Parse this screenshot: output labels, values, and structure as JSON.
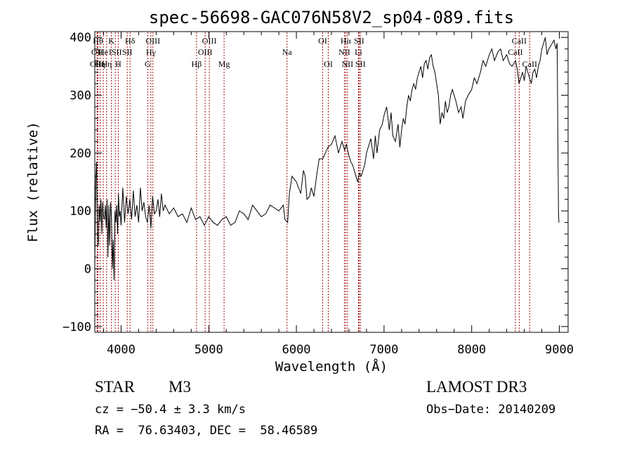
{
  "chart_data": {
    "type": "line",
    "title": "spec-56698-GAC076N58V2_sp04-089.fits",
    "xlabel": "Wavelength (Å)",
    "ylabel": "Flux (relative)",
    "xlim": [
      3700,
      9100
    ],
    "ylim": [
      -110,
      410
    ],
    "xticks": [
      4000,
      5000,
      6000,
      7000,
      8000,
      9000
    ],
    "yticks": [
      -100,
      0,
      100,
      200,
      300,
      400
    ],
    "xtick_labels": [
      "4000",
      "5000",
      "6000",
      "7000",
      "8000",
      "9000"
    ],
    "ytick_labels": [
      "−100",
      "0",
      "100",
      "200",
      "300",
      "400"
    ],
    "line_color": "#000000",
    "marker_color": "#a01010",
    "series": [
      {
        "x": [
          3700,
          3710,
          3720,
          3730,
          3740,
          3750,
          3760,
          3770,
          3780,
          3790,
          3800,
          3810,
          3820,
          3830,
          3840,
          3850,
          3860,
          3870,
          3880,
          3890,
          3900,
          3910,
          3920,
          3930,
          3940,
          3950,
          3960,
          3970,
          3980,
          3990,
          4000,
          4020,
          4040,
          4060,
          4080,
          4100,
          4120,
          4140,
          4160,
          4180,
          4200,
          4220,
          4240,
          4260,
          4280,
          4300,
          4320,
          4340,
          4360,
          4380,
          4400,
          4420,
          4440,
          4460,
          4480,
          4500,
          4550,
          4600,
          4650,
          4700,
          4750,
          4800,
          4850,
          4900,
          4950,
          5000,
          5050,
          5100,
          5150,
          5200,
          5250,
          5300,
          5350,
          5400,
          5450,
          5500,
          5550,
          5600,
          5650,
          5700,
          5750,
          5800,
          5850,
          5870,
          5900,
          5920,
          5950,
          6000,
          6050,
          6080,
          6100,
          6120,
          6150,
          6170,
          6200,
          6230,
          6260,
          6300,
          6330,
          6360,
          6400,
          6440,
          6480,
          6520,
          6550,
          6570,
          6600,
          6620,
          6640,
          6660,
          6680,
          6700,
          6720,
          6740,
          6760,
          6780,
          6800,
          6820,
          6850,
          6880,
          6900,
          6920,
          6950,
          6980,
          7000,
          7030,
          7060,
          7080,
          7100,
          7130,
          7160,
          7180,
          7200,
          7220,
          7240,
          7260,
          7280,
          7300,
          7320,
          7340,
          7360,
          7380,
          7400,
          7420,
          7440,
          7460,
          7480,
          7500,
          7520,
          7540,
          7560,
          7580,
          7600,
          7620,
          7640,
          7660,
          7680,
          7700,
          7720,
          7740,
          7760,
          7780,
          7800,
          7820,
          7850,
          7880,
          7900,
          7930,
          7960,
          8000,
          8030,
          8060,
          8100,
          8130,
          8160,
          8200,
          8230,
          8260,
          8300,
          8330,
          8360,
          8400,
          8430,
          8460,
          8500,
          8520,
          8540,
          8560,
          8580,
          8600,
          8620,
          8640,
          8660,
          8680,
          8700,
          8720,
          8740,
          8760,
          8780,
          8800,
          8820,
          8840,
          8860,
          8880,
          8900,
          8920,
          8940,
          8960,
          8975,
          8985,
          8990,
          8995,
          8998
        ],
        "y": [
          0,
          150,
          185,
          60,
          40,
          110,
          80,
          120,
          60,
          115,
          90,
          85,
          110,
          70,
          120,
          20,
          110,
          40,
          115,
          90,
          0,
          50,
          -20,
          100,
          80,
          110,
          60,
          130,
          90,
          100,
          75,
          140,
          80,
          125,
          95,
          120,
          85,
          135,
          90,
          110,
          80,
          140,
          100,
          115,
          90,
          80,
          110,
          70,
          125,
          95,
          100,
          120,
          90,
          130,
          100,
          110,
          95,
          105,
          90,
          95,
          80,
          105,
          85,
          90,
          75,
          90,
          80,
          75,
          85,
          90,
          75,
          80,
          100,
          95,
          85,
          110,
          100,
          90,
          95,
          110,
          105,
          100,
          110,
          85,
          80,
          130,
          160,
          150,
          130,
          170,
          160,
          120,
          125,
          140,
          125,
          160,
          190,
          190,
          200,
          210,
          215,
          230,
          200,
          220,
          205,
          215,
          195,
          185,
          180,
          170,
          160,
          150,
          165,
          160,
          170,
          180,
          200,
          210,
          225,
          190,
          230,
          200,
          240,
          250,
          265,
          280,
          240,
          270,
          230,
          220,
          250,
          210,
          240,
          260,
          250,
          280,
          300,
          290,
          310,
          320,
          310,
          330,
          340,
          350,
          330,
          355,
          360,
          345,
          365,
          370,
          350,
          340,
          320,
          300,
          250,
          270,
          260,
          290,
          270,
          280,
          300,
          310,
          300,
          290,
          270,
          280,
          260,
          290,
          300,
          310,
          330,
          320,
          340,
          360,
          350,
          370,
          380,
          360,
          375,
          380,
          360,
          370,
          355,
          350,
          360,
          345,
          320,
          330,
          340,
          325,
          350,
          340,
          330,
          320,
          340,
          345,
          330,
          350,
          360,
          380,
          390,
          400,
          370,
          380,
          385,
          390,
          395,
          380,
          390,
          200,
          100,
          80,
          80
        ]
      }
    ],
    "line_markers": [
      {
        "x": 3736,
        "label": "Hθ",
        "row": 0
      },
      {
        "x": 3727,
        "label": "OII",
        "row": 1
      },
      {
        "x": 3727,
        "label": "OIII",
        "row": 2
      },
      {
        "x": 3760,
        "label": "Hη",
        "row": 2
      },
      {
        "x": 3797,
        "label": "He",
        "row": 1
      },
      {
        "x": 3835,
        "label": "Hη",
        "row": 2
      },
      {
        "x": 3889,
        "label": "K",
        "row": 0
      },
      {
        "x": 3934,
        "label": "ISII",
        "row": 1
      },
      {
        "x": 3968,
        "label": "H",
        "row": 2
      },
      {
        "x": 4102,
        "label": "Hδ",
        "row": 0
      },
      {
        "x": 4070,
        "label": "SII",
        "row": 1
      },
      {
        "x": 4304,
        "label": "G",
        "row": 2
      },
      {
        "x": 4340,
        "label": "Hγ",
        "row": 1
      },
      {
        "x": 4363,
        "label": "OIII",
        "row": 0
      },
      {
        "x": 4861,
        "label": "Hβ",
        "row": 2
      },
      {
        "x": 4959,
        "label": "OIII",
        "row": 1
      },
      {
        "x": 5007,
        "label": "OIII",
        "row": 0
      },
      {
        "x": 5175,
        "label": "Mg",
        "row": 2
      },
      {
        "x": 5893,
        "label": "Na",
        "row": 1
      },
      {
        "x": 6300,
        "label": "OI",
        "row": 0
      },
      {
        "x": 6364,
        "label": "OI",
        "row": 2
      },
      {
        "x": 6548,
        "label": "NII",
        "row": 1
      },
      {
        "x": 6563,
        "label": "Hα",
        "row": 0
      },
      {
        "x": 6583,
        "label": "NII",
        "row": 2
      },
      {
        "x": 6716,
        "label": "SII",
        "row": 0
      },
      {
        "x": 6731,
        "label": "SII",
        "row": 2
      },
      {
        "x": 6708,
        "label": "Li",
        "row": 1
      },
      {
        "x": 8498,
        "label": "CaII",
        "row": 1
      },
      {
        "x": 8542,
        "label": "CaII",
        "row": 0
      },
      {
        "x": 8662,
        "label": "CaII",
        "row": 2
      }
    ]
  },
  "footer": {
    "class_label": "STAR",
    "subclass_label": "M3",
    "cz_text": "cz = −50.4 ± 3.3 km/s",
    "radec_text": "RA =  76.63403, DEC =  58.46589",
    "survey_label": "LAMOST DR3",
    "obs_date_text": "Obs−Date: 20140209"
  }
}
